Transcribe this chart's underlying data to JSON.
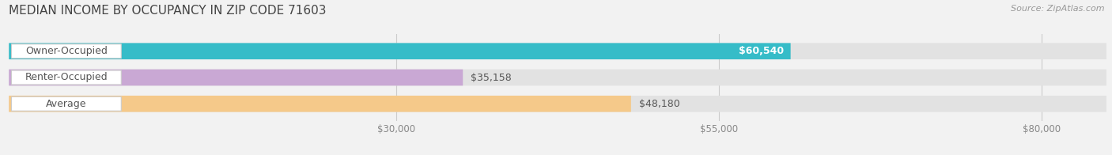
{
  "title": "MEDIAN INCOME BY OCCUPANCY IN ZIP CODE 71603",
  "source": "Source: ZipAtlas.com",
  "categories": [
    "Owner-Occupied",
    "Renter-Occupied",
    "Average"
  ],
  "values": [
    60540,
    35158,
    48180
  ],
  "bar_colors": [
    "#36bcc8",
    "#c9a8d4",
    "#f5c98a"
  ],
  "background_color": "#f2f2f2",
  "bar_bg_color": "#e2e2e2",
  "xlim_left": 0,
  "xlim_right": 85000,
  "xticks": [
    30000,
    55000,
    80000
  ],
  "xtick_labels": [
    "$30,000",
    "$55,000",
    "$80,000"
  ],
  "value_labels": [
    "$60,540",
    "$35,158",
    "$48,180"
  ],
  "value_label_inside": [
    true,
    false,
    false
  ],
  "title_fontsize": 11,
  "label_fontsize": 9,
  "tick_fontsize": 8.5,
  "source_fontsize": 8,
  "bar_height": 0.62,
  "figsize": [
    14.06,
    1.96
  ],
  "dpi": 100
}
